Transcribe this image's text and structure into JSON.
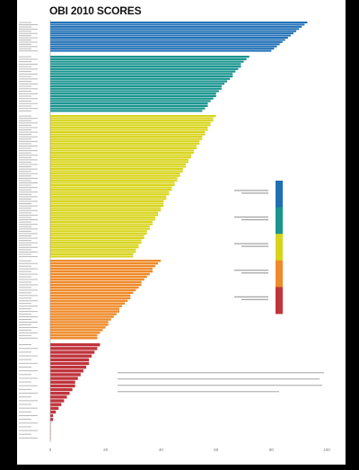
{
  "chart_data": {
    "type": "bar",
    "orientation": "horizontal",
    "title": "OBI 2010 SCORES",
    "xlim": [
      0,
      100
    ],
    "x_ticks": [
      "0",
      "20",
      "40",
      "60",
      "80",
      "100"
    ],
    "grid": false,
    "legend_position": "right",
    "bands": [
      {
        "color": "#1f6fb5",
        "values": [
          93,
          92,
          91,
          90,
          89,
          88,
          87,
          86,
          85,
          84,
          83,
          82,
          81,
          80
        ]
      },
      {
        "color": "#1a958f",
        "values": [
          72,
          71,
          70,
          69,
          69,
          68,
          67,
          66,
          66,
          65,
          64,
          63,
          62,
          62,
          61,
          60,
          60,
          59,
          58,
          57,
          57,
          56,
          55
        ]
      },
      {
        "color": "#d8d41c",
        "values": [
          60,
          59,
          59,
          58,
          58,
          57,
          57,
          56,
          56,
          55,
          55,
          54,
          54,
          53,
          53,
          52,
          52,
          51,
          51,
          50,
          50,
          49,
          49,
          48,
          48,
          47,
          47,
          46,
          46,
          45,
          45,
          44,
          44,
          43,
          43,
          42,
          42,
          41,
          41,
          41,
          40,
          40,
          39,
          39,
          38,
          38,
          37,
          37,
          36,
          36,
          35,
          35,
          34,
          34,
          33,
          33,
          32,
          32,
          31,
          31,
          30,
          30
        ]
      },
      {
        "color": "#ee8a2a",
        "values": [
          40,
          39,
          38,
          37,
          37,
          36,
          35,
          34,
          33,
          33,
          32,
          31,
          30,
          29,
          29,
          28,
          27,
          26,
          25,
          25,
          24,
          23,
          22,
          21,
          21,
          20,
          19,
          18,
          17,
          17
        ]
      },
      {
        "color": "#c0343c",
        "values": [
          18,
          17,
          16,
          15,
          14,
          14,
          13,
          12,
          11,
          10,
          9,
          9,
          8,
          7,
          6,
          5,
          4,
          3,
          2,
          1,
          1,
          0,
          0,
          0,
          0,
          0
        ]
      }
    ]
  },
  "page": {
    "title": "OBI 2010 SCORES"
  }
}
